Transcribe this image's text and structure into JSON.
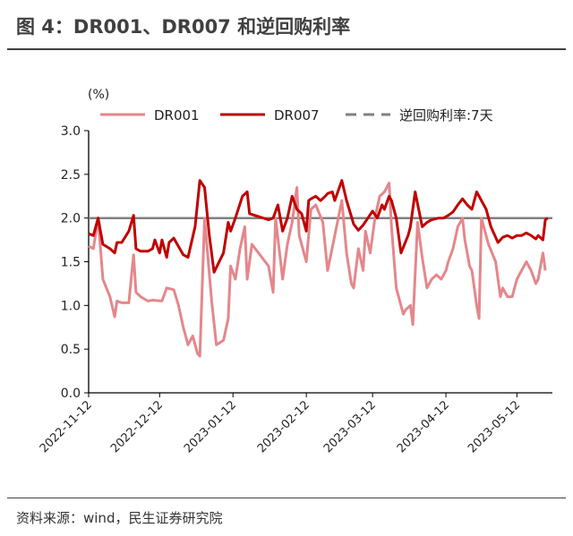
{
  "title": "图 4：DR001、DR007 和逆回购利率",
  "source": "资料来源：wind，民生证券研究院",
  "chart_data": {
    "type": "line",
    "title": "图 4：DR001、DR007 和逆回购利率",
    "ylabel": "(%)",
    "xlabel": "",
    "ylim": [
      0,
      3.0
    ],
    "yticks": [
      "0.0",
      "0.5",
      "1.0",
      "1.5",
      "2.0",
      "2.5",
      "3.0"
    ],
    "xlim": [
      "2022-11-12",
      "2023-05-27"
    ],
    "xticks": [
      "2022-11-12",
      "2022-12-12",
      "2023-01-12",
      "2023-02-12",
      "2023-03-12",
      "2023-04-12",
      "2023-05-12"
    ],
    "grid": false,
    "legend": "top",
    "series": [
      {
        "name": "DR001",
        "color": "#e4878b",
        "points": [
          [
            "2022-11-12",
            1.68
          ],
          [
            "2022-11-14",
            1.65
          ],
          [
            "2022-11-16",
            2.0
          ],
          [
            "2022-11-18",
            1.3
          ],
          [
            "2022-11-21",
            1.1
          ],
          [
            "2022-11-23",
            0.87
          ],
          [
            "2022-11-24",
            1.05
          ],
          [
            "2022-11-26",
            1.03
          ],
          [
            "2022-11-29",
            1.03
          ],
          [
            "2022-12-01",
            1.58
          ],
          [
            "2022-12-02",
            1.15
          ],
          [
            "2022-12-04",
            1.1
          ],
          [
            "2022-12-07",
            1.05
          ],
          [
            "2022-12-09",
            1.06
          ],
          [
            "2022-12-13",
            1.05
          ],
          [
            "2022-12-15",
            1.2
          ],
          [
            "2022-12-18",
            1.18
          ],
          [
            "2022-12-20",
            1.0
          ],
          [
            "2022-12-22",
            0.75
          ],
          [
            "2022-12-24",
            0.55
          ],
          [
            "2022-12-26",
            0.65
          ],
          [
            "2022-12-28",
            0.45
          ],
          [
            "2022-12-29",
            0.42
          ],
          [
            "2022-12-31",
            2.0
          ],
          [
            "2023-01-03",
            1.05
          ],
          [
            "2023-01-05",
            0.55
          ],
          [
            "2023-01-08",
            0.6
          ],
          [
            "2023-01-10",
            0.85
          ],
          [
            "2023-01-11",
            1.45
          ],
          [
            "2023-01-13",
            1.3
          ],
          [
            "2023-01-15",
            1.65
          ],
          [
            "2023-01-17",
            1.9
          ],
          [
            "2023-01-18",
            1.3
          ],
          [
            "2023-01-20",
            1.7
          ],
          [
            "2023-01-27",
            1.45
          ],
          [
            "2023-01-29",
            1.15
          ],
          [
            "2023-01-30",
            2.0
          ],
          [
            "2023-02-02",
            1.3
          ],
          [
            "2023-02-04",
            1.7
          ],
          [
            "2023-02-06",
            1.95
          ],
          [
            "2023-02-08",
            2.35
          ],
          [
            "2023-02-09",
            1.8
          ],
          [
            "2023-02-12",
            1.5
          ],
          [
            "2023-02-14",
            2.1
          ],
          [
            "2023-02-16",
            2.15
          ],
          [
            "2023-02-19",
            1.95
          ],
          [
            "2023-02-21",
            1.4
          ],
          [
            "2023-02-24",
            1.8
          ],
          [
            "2023-02-27",
            2.2
          ],
          [
            "2023-03-01",
            1.6
          ],
          [
            "2023-03-03",
            1.25
          ],
          [
            "2023-03-04",
            1.2
          ],
          [
            "2023-03-06",
            1.65
          ],
          [
            "2023-03-08",
            1.4
          ],
          [
            "2023-03-09",
            1.85
          ],
          [
            "2023-03-11",
            1.6
          ],
          [
            "2023-03-13",
            2.0
          ],
          [
            "2023-03-15",
            2.25
          ],
          [
            "2023-03-17",
            2.3
          ],
          [
            "2023-03-19",
            2.4
          ],
          [
            "2023-03-20",
            1.9
          ],
          [
            "2023-03-22",
            1.2
          ],
          [
            "2023-03-25",
            0.9
          ],
          [
            "2023-03-26",
            0.95
          ],
          [
            "2023-03-28",
            1.0
          ],
          [
            "2023-03-29",
            0.78
          ],
          [
            "2023-03-31",
            1.95
          ],
          [
            "2023-04-02",
            1.55
          ],
          [
            "2023-04-04",
            1.2
          ],
          [
            "2023-04-06",
            1.3
          ],
          [
            "2023-04-08",
            1.35
          ],
          [
            "2023-04-10",
            1.3
          ],
          [
            "2023-04-12",
            1.4
          ],
          [
            "2023-04-13",
            1.5
          ],
          [
            "2023-04-15",
            1.65
          ],
          [
            "2023-04-17",
            1.9
          ],
          [
            "2023-04-19",
            2.0
          ],
          [
            "2023-04-20",
            1.75
          ],
          [
            "2023-04-22",
            1.45
          ],
          [
            "2023-04-23",
            1.4
          ],
          [
            "2023-04-25",
            1.0
          ],
          [
            "2023-04-26",
            0.85
          ],
          [
            "2023-04-27",
            2.0
          ],
          [
            "2023-04-30",
            1.7
          ],
          [
            "2023-05-03",
            1.5
          ],
          [
            "2023-05-05",
            1.1
          ],
          [
            "2023-05-06",
            1.2
          ],
          [
            "2023-05-08",
            1.1
          ],
          [
            "2023-05-10",
            1.1
          ],
          [
            "2023-05-12",
            1.3
          ],
          [
            "2023-05-14",
            1.4
          ],
          [
            "2023-05-16",
            1.5
          ],
          [
            "2023-05-18",
            1.4
          ],
          [
            "2023-05-20",
            1.25
          ],
          [
            "2023-05-21",
            1.3
          ],
          [
            "2023-05-23",
            1.6
          ],
          [
            "2023-05-24",
            1.4
          ]
        ]
      },
      {
        "name": "DR007",
        "color": "#c00000",
        "points": [
          [
            "2022-11-12",
            1.82
          ],
          [
            "2022-11-14",
            1.8
          ],
          [
            "2022-11-16",
            2.0
          ],
          [
            "2022-11-18",
            1.7
          ],
          [
            "2022-11-21",
            1.65
          ],
          [
            "2022-11-23",
            1.6
          ],
          [
            "2022-11-24",
            1.72
          ],
          [
            "2022-11-26",
            1.72
          ],
          [
            "2022-11-29",
            1.85
          ],
          [
            "2022-12-01",
            2.03
          ],
          [
            "2022-12-02",
            1.65
          ],
          [
            "2022-12-04",
            1.62
          ],
          [
            "2022-12-07",
            1.62
          ],
          [
            "2022-12-09",
            1.65
          ],
          [
            "2022-12-10",
            1.75
          ],
          [
            "2022-12-12",
            1.6
          ],
          [
            "2022-12-13",
            1.75
          ],
          [
            "2022-12-15",
            1.55
          ],
          [
            "2022-12-16",
            1.72
          ],
          [
            "2022-12-18",
            1.77
          ],
          [
            "2022-12-22",
            1.58
          ],
          [
            "2022-12-24",
            1.55
          ],
          [
            "2022-12-27",
            1.9
          ],
          [
            "2022-12-29",
            2.43
          ],
          [
            "2022-12-31",
            2.35
          ],
          [
            "2023-01-02",
            1.8
          ],
          [
            "2023-01-04",
            1.38
          ],
          [
            "2023-01-08",
            1.6
          ],
          [
            "2023-01-10",
            1.95
          ],
          [
            "2023-01-11",
            1.85
          ],
          [
            "2023-01-13",
            2.0
          ],
          [
            "2023-01-16",
            2.25
          ],
          [
            "2023-01-18",
            2.3
          ],
          [
            "2023-01-19",
            2.05
          ],
          [
            "2023-01-27",
            1.98
          ],
          [
            "2023-01-29",
            2.0
          ],
          [
            "2023-01-31",
            2.15
          ],
          [
            "2023-02-02",
            1.85
          ],
          [
            "2023-02-04",
            2.0
          ],
          [
            "2023-02-06",
            2.25
          ],
          [
            "2023-02-08",
            2.1
          ],
          [
            "2023-02-10",
            2.05
          ],
          [
            "2023-02-12",
            1.85
          ],
          [
            "2023-02-13",
            2.2
          ],
          [
            "2023-02-14",
            2.22
          ],
          [
            "2023-02-16",
            2.25
          ],
          [
            "2023-02-18",
            2.2
          ],
          [
            "2023-02-20",
            2.25
          ],
          [
            "2023-02-21",
            2.28
          ],
          [
            "2023-02-23",
            2.3
          ],
          [
            "2023-02-24",
            2.2
          ],
          [
            "2023-02-27",
            2.43
          ],
          [
            "2023-03-01",
            2.2
          ],
          [
            "2023-03-03",
            2.02
          ],
          [
            "2023-03-04",
            1.93
          ],
          [
            "2023-03-06",
            1.86
          ],
          [
            "2023-03-08",
            1.92
          ],
          [
            "2023-03-10",
            2.0
          ],
          [
            "2023-03-12",
            2.08
          ],
          [
            "2023-03-14",
            2.0
          ],
          [
            "2023-03-16",
            2.15
          ],
          [
            "2023-03-17",
            2.1
          ],
          [
            "2023-03-19",
            2.25
          ],
          [
            "2023-03-20",
            2.2
          ],
          [
            "2023-03-22",
            2.0
          ],
          [
            "2023-03-24",
            1.6
          ],
          [
            "2023-03-27",
            1.8
          ],
          [
            "2023-03-28",
            1.9
          ],
          [
            "2023-03-30",
            2.3
          ],
          [
            "2023-04-02",
            1.9
          ],
          [
            "2023-04-04",
            1.95
          ],
          [
            "2023-04-06",
            1.98
          ],
          [
            "2023-04-09",
            2.0
          ],
          [
            "2023-04-11",
            2.0
          ],
          [
            "2023-04-13",
            2.03
          ],
          [
            "2023-04-15",
            2.07
          ],
          [
            "2023-04-17",
            2.15
          ],
          [
            "2023-04-19",
            2.22
          ],
          [
            "2023-04-21",
            2.15
          ],
          [
            "2023-04-23",
            2.1
          ],
          [
            "2023-04-25",
            2.3
          ],
          [
            "2023-04-27",
            2.2
          ],
          [
            "2023-04-29",
            2.1
          ],
          [
            "2023-05-01",
            1.9
          ],
          [
            "2023-05-04",
            1.72
          ],
          [
            "2023-05-06",
            1.78
          ],
          [
            "2023-05-08",
            1.8
          ],
          [
            "2023-05-10",
            1.77
          ],
          [
            "2023-05-12",
            1.8
          ],
          [
            "2023-05-14",
            1.8
          ],
          [
            "2023-05-16",
            1.83
          ],
          [
            "2023-05-18",
            1.8
          ],
          [
            "2023-05-20",
            1.76
          ],
          [
            "2023-05-21",
            1.8
          ],
          [
            "2023-05-23",
            1.75
          ],
          [
            "2023-05-24",
            1.98
          ],
          [
            "2023-05-25",
            2.0
          ]
        ]
      },
      {
        "name": "逆回购利率:7天",
        "color": "#808080",
        "dashed_in_legend": true,
        "points": [
          [
            "2022-11-12",
            2.0
          ],
          [
            "2023-05-27",
            2.0
          ]
        ]
      }
    ]
  }
}
